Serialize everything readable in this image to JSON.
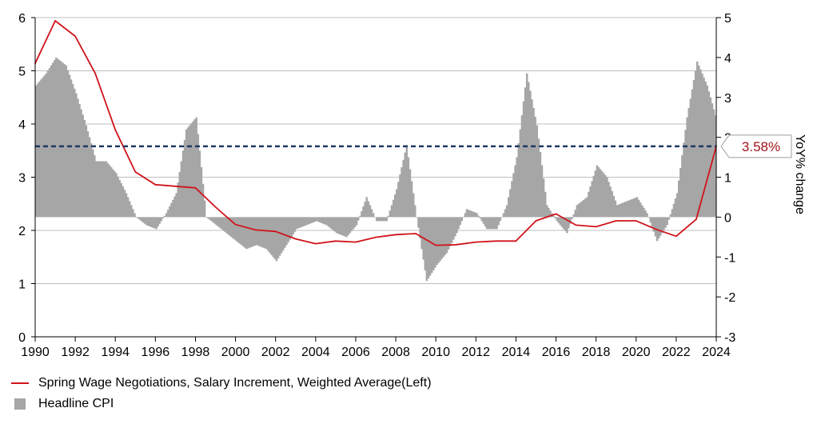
{
  "chart_data": {
    "type": "bar+line",
    "title": "",
    "xlabel": "",
    "ylabel_left": "",
    "ylabel_right": "YoY% change",
    "xlim": [
      1990,
      2024
    ],
    "ylim_left": [
      0,
      6
    ],
    "ylim_right": [
      -3,
      5
    ],
    "x_ticks": [
      "1990",
      "1992",
      "1994",
      "1996",
      "1998",
      "2000",
      "2002",
      "2004",
      "2006",
      "2008",
      "2010",
      "2012",
      "2014",
      "2016",
      "2018",
      "2020",
      "2022",
      "2024"
    ],
    "y_ticks_left": [
      "0",
      "1",
      "2",
      "3",
      "4",
      "5",
      "6"
    ],
    "y_ticks_right": [
      "-3",
      "-2",
      "-1",
      "0",
      "1",
      "2",
      "3",
      "4",
      "5"
    ],
    "grid": "horizontal",
    "legend_position": "bottom-left",
    "reference_line": {
      "value": 3.58,
      "axis": "left",
      "label": "3.58%",
      "color": "#1f3864",
      "style": "dashed"
    },
    "series": [
      {
        "name": "Spring Wage Negotiations, Salary Increment, Weighted Average(Left)",
        "type": "line",
        "axis": "left",
        "color": "#d0141c",
        "x": [
          1990,
          1991,
          1992,
          1993,
          1994,
          1995,
          1996,
          1997,
          1998,
          1999,
          2000,
          2001,
          2002,
          2003,
          2004,
          2005,
          2006,
          2007,
          2008,
          2009,
          2010,
          2011,
          2012,
          2013,
          2014,
          2015,
          2016,
          2017,
          2018,
          2019,
          2020,
          2021,
          2022,
          2023,
          2024
        ],
        "values": [
          5.14,
          5.94,
          5.65,
          4.95,
          3.89,
          3.1,
          2.86,
          2.83,
          2.8,
          2.44,
          2.11,
          2.01,
          1.98,
          1.84,
          1.75,
          1.8,
          1.78,
          1.87,
          1.92,
          1.94,
          1.72,
          1.73,
          1.78,
          1.8,
          1.8,
          2.18,
          2.31,
          2.1,
          2.07,
          2.18,
          2.18,
          2.02,
          1.89,
          2.21,
          3.58
        ]
      },
      {
        "name": "Headline CPI",
        "type": "bar",
        "axis": "right",
        "color": "#a6a6a6",
        "monthly": true,
        "x": [
          1990.0,
          1990.5,
          1991.0,
          1991.5,
          1992.0,
          1992.5,
          1993.0,
          1993.5,
          1994.0,
          1994.5,
          1995.0,
          1995.5,
          1996.0,
          1996.5,
          1997.0,
          1997.5,
          1998.0,
          1998.5,
          1999.0,
          1999.5,
          2000.0,
          2000.5,
          2001.0,
          2001.5,
          2002.0,
          2002.5,
          2003.0,
          2003.5,
          2004.0,
          2004.5,
          2005.0,
          2005.5,
          2006.0,
          2006.5,
          2007.0,
          2007.5,
          2008.0,
          2008.5,
          2009.0,
          2009.5,
          2010.0,
          2010.5,
          2011.0,
          2011.5,
          2012.0,
          2012.5,
          2013.0,
          2013.5,
          2014.0,
          2014.5,
          2015.0,
          2015.5,
          2016.0,
          2016.5,
          2017.0,
          2017.5,
          2018.0,
          2018.5,
          2019.0,
          2019.5,
          2020.0,
          2020.5,
          2021.0,
          2021.5,
          2022.0,
          2022.5,
          2023.0,
          2023.5,
          2024.0
        ],
        "values": [
          3.3,
          3.6,
          4.0,
          3.8,
          3.1,
          2.3,
          1.4,
          1.4,
          1.1,
          0.6,
          0.0,
          -0.2,
          -0.3,
          0.1,
          0.6,
          2.2,
          2.5,
          0.0,
          -0.2,
          -0.4,
          -0.6,
          -0.8,
          -0.7,
          -0.8,
          -1.1,
          -0.7,
          -0.3,
          -0.2,
          -0.1,
          -0.2,
          -0.4,
          -0.5,
          -0.2,
          0.5,
          -0.1,
          -0.1,
          0.7,
          1.8,
          0.0,
          -1.6,
          -1.2,
          -0.9,
          -0.4,
          0.2,
          0.1,
          -0.3,
          -0.3,
          0.3,
          1.5,
          3.6,
          2.3,
          0.3,
          -0.1,
          -0.4,
          0.3,
          0.5,
          1.3,
          1.0,
          0.3,
          0.4,
          0.5,
          0.1,
          -0.6,
          -0.2,
          0.6,
          2.5,
          3.9,
          3.3,
          2.4
        ]
      }
    ]
  },
  "legend": {
    "line_label": "Spring Wage Negotiations, Salary Increment, Weighted Average(Left)",
    "bar_label": "Headline CPI"
  }
}
